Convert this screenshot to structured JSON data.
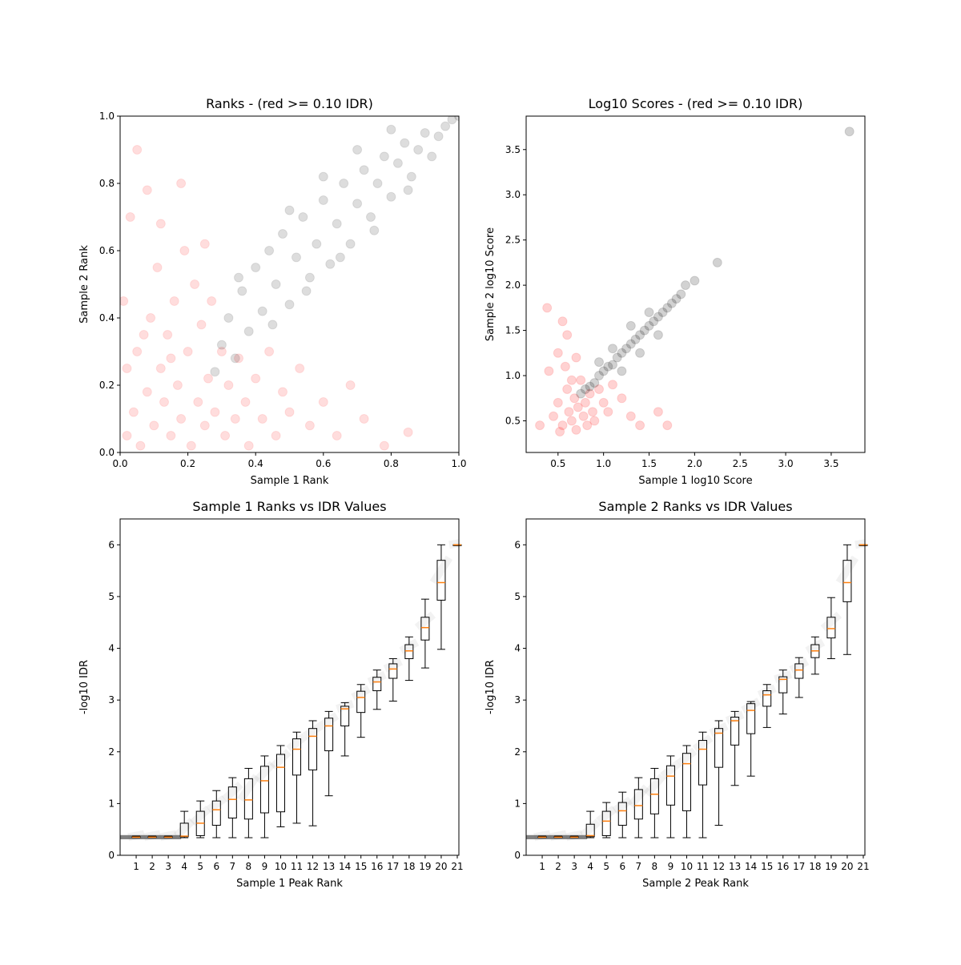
{
  "chart_data": [
    {
      "id": "ranks",
      "type": "scatter",
      "title": "Ranks - (red >= 0.10 IDR)",
      "xlabel": "Sample 1 Rank",
      "ylabel": "Sample 2 Rank",
      "xlim": [
        0,
        1
      ],
      "ylim": [
        0,
        1
      ],
      "xticks": [
        "0.0",
        "0.2",
        "0.4",
        "0.6",
        "0.8",
        "1.0"
      ],
      "yticks": [
        "0.0",
        "0.2",
        "0.4",
        "0.6",
        "0.8",
        "1.0"
      ],
      "series": [
        {
          "color": "#ff0000",
          "alpha": 0.06,
          "points": [
            [
              0.02,
              0.05
            ],
            [
              0.04,
              0.12
            ],
            [
              0.05,
              0.3
            ],
            [
              0.06,
              0.02
            ],
            [
              0.08,
              0.18
            ],
            [
              0.09,
              0.4
            ],
            [
              0.1,
              0.08
            ],
            [
              0.11,
              0.55
            ],
            [
              0.12,
              0.25
            ],
            [
              0.13,
              0.15
            ],
            [
              0.14,
              0.35
            ],
            [
              0.15,
              0.05
            ],
            [
              0.16,
              0.45
            ],
            [
              0.17,
              0.2
            ],
            [
              0.18,
              0.1
            ],
            [
              0.19,
              0.6
            ],
            [
              0.2,
              0.3
            ],
            [
              0.21,
              0.02
            ],
            [
              0.22,
              0.5
            ],
            [
              0.23,
              0.15
            ],
            [
              0.24,
              0.38
            ],
            [
              0.25,
              0.08
            ],
            [
              0.26,
              0.22
            ],
            [
              0.27,
              0.45
            ],
            [
              0.28,
              0.12
            ],
            [
              0.3,
              0.3
            ],
            [
              0.31,
              0.05
            ],
            [
              0.32,
              0.2
            ],
            [
              0.34,
              0.1
            ],
            [
              0.35,
              0.28
            ],
            [
              0.37,
              0.15
            ],
            [
              0.38,
              0.02
            ],
            [
              0.4,
              0.22
            ],
            [
              0.42,
              0.1
            ],
            [
              0.44,
              0.3
            ],
            [
              0.46,
              0.05
            ],
            [
              0.48,
              0.18
            ],
            [
              0.5,
              0.12
            ],
            [
              0.53,
              0.25
            ],
            [
              0.56,
              0.08
            ],
            [
              0.6,
              0.15
            ],
            [
              0.64,
              0.05
            ],
            [
              0.68,
              0.2
            ],
            [
              0.72,
              0.1
            ],
            [
              0.78,
              0.02
            ],
            [
              0.85,
              0.06
            ],
            [
              0.03,
              0.7
            ],
            [
              0.05,
              0.9
            ],
            [
              0.08,
              0.78
            ],
            [
              0.12,
              0.68
            ],
            [
              0.18,
              0.8
            ],
            [
              0.25,
              0.62
            ],
            [
              0.01,
              0.45
            ],
            [
              0.02,
              0.25
            ],
            [
              0.07,
              0.35
            ],
            [
              0.15,
              0.28
            ]
          ]
        },
        {
          "color": "#000000",
          "alpha": 0.06,
          "points": [
            [
              0.28,
              0.24
            ],
            [
              0.3,
              0.32
            ],
            [
              0.32,
              0.4
            ],
            [
              0.34,
              0.28
            ],
            [
              0.36,
              0.48
            ],
            [
              0.38,
              0.36
            ],
            [
              0.4,
              0.55
            ],
            [
              0.42,
              0.42
            ],
            [
              0.44,
              0.6
            ],
            [
              0.46,
              0.5
            ],
            [
              0.48,
              0.65
            ],
            [
              0.5,
              0.44
            ],
            [
              0.52,
              0.58
            ],
            [
              0.54,
              0.7
            ],
            [
              0.56,
              0.52
            ],
            [
              0.58,
              0.62
            ],
            [
              0.6,
              0.75
            ],
            [
              0.62,
              0.56
            ],
            [
              0.64,
              0.68
            ],
            [
              0.66,
              0.8
            ],
            [
              0.68,
              0.62
            ],
            [
              0.7,
              0.74
            ],
            [
              0.72,
              0.84
            ],
            [
              0.74,
              0.7
            ],
            [
              0.76,
              0.8
            ],
            [
              0.78,
              0.88
            ],
            [
              0.8,
              0.76
            ],
            [
              0.82,
              0.86
            ],
            [
              0.84,
              0.92
            ],
            [
              0.86,
              0.82
            ],
            [
              0.88,
              0.9
            ],
            [
              0.9,
              0.95
            ],
            [
              0.92,
              0.88
            ],
            [
              0.94,
              0.94
            ],
            [
              0.96,
              0.97
            ],
            [
              0.98,
              0.99
            ],
            [
              1.0,
              1.0
            ],
            [
              0.45,
              0.38
            ],
            [
              0.55,
              0.48
            ],
            [
              0.65,
              0.58
            ],
            [
              0.75,
              0.66
            ],
            [
              0.85,
              0.78
            ],
            [
              0.35,
              0.52
            ],
            [
              0.5,
              0.72
            ],
            [
              0.6,
              0.82
            ],
            [
              0.7,
              0.9
            ],
            [
              0.8,
              0.96
            ]
          ]
        }
      ]
    },
    {
      "id": "scores",
      "type": "scatter",
      "title": "Log10 Scores - (red >= 0.10 IDR)",
      "xlabel": "Sample 1 log10 Score",
      "ylabel": "Sample 2 log10 Score",
      "xlim": [
        0.15,
        3.87
      ],
      "ylim": [
        0.15,
        3.87
      ],
      "xticks": [
        "0.5",
        "1.0",
        "1.5",
        "2.0",
        "2.5",
        "3.0",
        "3.5"
      ],
      "yticks": [
        "0.5",
        "1.0",
        "1.5",
        "2.0",
        "2.5",
        "3.0",
        "3.5"
      ],
      "series": [
        {
          "color": "#ff0000",
          "alpha": 0.08,
          "points": [
            [
              0.45,
              0.55
            ],
            [
              0.5,
              0.7
            ],
            [
              0.55,
              0.45
            ],
            [
              0.6,
              0.85
            ],
            [
              0.62,
              0.6
            ],
            [
              0.65,
              0.5
            ],
            [
              0.68,
              0.75
            ],
            [
              0.7,
              0.4
            ],
            [
              0.72,
              0.65
            ],
            [
              0.75,
              0.95
            ],
            [
              0.78,
              0.55
            ],
            [
              0.8,
              0.7
            ],
            [
              0.82,
              0.45
            ],
            [
              0.85,
              0.8
            ],
            [
              0.88,
              0.6
            ],
            [
              0.9,
              0.5
            ],
            [
              0.95,
              0.85
            ],
            [
              1.0,
              0.7
            ],
            [
              1.05,
              0.6
            ],
            [
              1.1,
              0.9
            ],
            [
              1.2,
              0.75
            ],
            [
              1.3,
              0.55
            ],
            [
              1.4,
              0.45
            ],
            [
              1.6,
              0.6
            ],
            [
              1.7,
              0.45
            ],
            [
              0.4,
              1.05
            ],
            [
              0.5,
              1.25
            ],
            [
              0.6,
              1.45
            ],
            [
              0.7,
              1.2
            ],
            [
              0.55,
              1.6
            ],
            [
              0.38,
              1.75
            ],
            [
              0.3,
              0.45
            ],
            [
              0.52,
              0.38
            ],
            [
              0.65,
              0.95
            ],
            [
              0.58,
              1.1
            ]
          ]
        },
        {
          "color": "#000000",
          "alpha": 0.08,
          "points": [
            [
              0.75,
              0.8
            ],
            [
              0.8,
              0.85
            ],
            [
              0.85,
              0.88
            ],
            [
              0.9,
              0.92
            ],
            [
              0.95,
              1.0
            ],
            [
              1.0,
              1.05
            ],
            [
              1.05,
              1.1
            ],
            [
              1.1,
              1.12
            ],
            [
              1.15,
              1.2
            ],
            [
              1.2,
              1.25
            ],
            [
              1.25,
              1.3
            ],
            [
              1.3,
              1.35
            ],
            [
              1.35,
              1.4
            ],
            [
              1.4,
              1.45
            ],
            [
              1.45,
              1.5
            ],
            [
              1.5,
              1.55
            ],
            [
              1.55,
              1.6
            ],
            [
              1.6,
              1.65
            ],
            [
              1.65,
              1.7
            ],
            [
              1.7,
              1.75
            ],
            [
              1.75,
              1.8
            ],
            [
              1.8,
              1.85
            ],
            [
              1.85,
              1.9
            ],
            [
              1.9,
              2.0
            ],
            [
              2.0,
              2.05
            ],
            [
              2.25,
              2.25
            ],
            [
              3.7,
              3.7
            ],
            [
              1.1,
              1.3
            ],
            [
              1.2,
              1.05
            ],
            [
              1.4,
              1.25
            ],
            [
              1.5,
              1.7
            ],
            [
              1.3,
              1.55
            ],
            [
              1.6,
              1.45
            ],
            [
              0.95,
              1.15
            ]
          ]
        }
      ]
    },
    {
      "id": "s1idr",
      "type": "box",
      "title": "Sample 1 Ranks vs IDR Values",
      "xlabel": "Sample 1 Peak Rank",
      "ylabel": "-log10 IDR",
      "xlim": [
        0,
        21
      ],
      "ylim": [
        0,
        6.5
      ],
      "yticks": [
        "0",
        "1",
        "2",
        "3",
        "4",
        "5",
        "6"
      ],
      "categories": [
        "1",
        "2",
        "3",
        "4",
        "5",
        "6",
        "7",
        "8",
        "9",
        "10",
        "11",
        "12",
        "13",
        "14",
        "15",
        "16",
        "17",
        "18",
        "19",
        "20",
        "21"
      ],
      "boxes": [
        [
          0.35,
          0.35,
          0.35,
          0.36,
          0.37
        ],
        [
          0.35,
          0.35,
          0.35,
          0.36,
          0.37
        ],
        [
          0.35,
          0.35,
          0.35,
          0.36,
          0.37
        ],
        [
          0.34,
          0.36,
          0.37,
          0.62,
          0.85
        ],
        [
          0.34,
          0.38,
          0.62,
          0.85,
          1.05
        ],
        [
          0.34,
          0.58,
          0.88,
          1.05,
          1.25
        ],
        [
          0.34,
          0.72,
          1.08,
          1.32,
          1.5
        ],
        [
          0.34,
          0.7,
          1.07,
          1.48,
          1.68
        ],
        [
          0.34,
          0.82,
          1.44,
          1.72,
          1.92
        ],
        [
          0.55,
          0.84,
          1.7,
          1.95,
          2.12
        ],
        [
          0.62,
          1.55,
          2.05,
          2.25,
          2.38
        ],
        [
          0.57,
          1.65,
          2.3,
          2.45,
          2.6
        ],
        [
          1.15,
          2.02,
          2.5,
          2.65,
          2.78
        ],
        [
          1.92,
          2.5,
          2.83,
          2.88,
          2.95
        ],
        [
          2.28,
          2.76,
          3.05,
          3.17,
          3.3
        ],
        [
          2.82,
          3.18,
          3.35,
          3.44,
          3.58
        ],
        [
          2.98,
          3.42,
          3.6,
          3.7,
          3.8
        ],
        [
          3.38,
          3.8,
          3.95,
          4.07,
          4.22
        ],
        [
          3.62,
          4.16,
          4.4,
          4.6,
          4.95
        ],
        [
          3.98,
          4.93,
          5.27,
          5.7,
          6.0
        ],
        [
          6.0,
          6.0,
          6.0,
          6.0,
          6.0
        ]
      ]
    },
    {
      "id": "s2idr",
      "type": "box",
      "title": "Sample 2 Ranks vs IDR Values",
      "xlabel": "Sample 2 Peak Rank",
      "ylabel": "-log10 IDR",
      "xlim": [
        0,
        21
      ],
      "ylim": [
        0,
        6.5
      ],
      "yticks": [
        "0",
        "1",
        "2",
        "3",
        "4",
        "5",
        "6"
      ],
      "categories": [
        "1",
        "2",
        "3",
        "4",
        "5",
        "6",
        "7",
        "8",
        "9",
        "10",
        "11",
        "12",
        "13",
        "14",
        "15",
        "16",
        "17",
        "18",
        "19",
        "20",
        "21"
      ],
      "boxes": [
        [
          0.35,
          0.35,
          0.35,
          0.36,
          0.37
        ],
        [
          0.35,
          0.35,
          0.35,
          0.36,
          0.37
        ],
        [
          0.35,
          0.35,
          0.35,
          0.36,
          0.37
        ],
        [
          0.34,
          0.36,
          0.38,
          0.6,
          0.85
        ],
        [
          0.34,
          0.38,
          0.66,
          0.85,
          1.02
        ],
        [
          0.34,
          0.58,
          0.86,
          1.02,
          1.22
        ],
        [
          0.34,
          0.7,
          0.96,
          1.27,
          1.5
        ],
        [
          0.34,
          0.8,
          1.18,
          1.48,
          1.68
        ],
        [
          0.34,
          0.97,
          1.53,
          1.73,
          1.92
        ],
        [
          0.34,
          0.86,
          1.77,
          1.97,
          2.12
        ],
        [
          0.34,
          1.36,
          2.05,
          2.22,
          2.38
        ],
        [
          0.58,
          1.7,
          2.36,
          2.45,
          2.6
        ],
        [
          1.35,
          2.13,
          2.6,
          2.67,
          2.78
        ],
        [
          1.53,
          2.35,
          2.8,
          2.93,
          2.97
        ],
        [
          2.47,
          2.88,
          3.1,
          3.18,
          3.3
        ],
        [
          2.73,
          3.14,
          3.4,
          3.45,
          3.58
        ],
        [
          3.05,
          3.42,
          3.58,
          3.7,
          3.82
        ],
        [
          3.5,
          3.82,
          3.95,
          4.07,
          4.22
        ],
        [
          3.8,
          4.2,
          4.38,
          4.6,
          4.98
        ],
        [
          3.88,
          4.9,
          5.27,
          5.7,
          6.0
        ],
        [
          6.0,
          6.0,
          6.0,
          6.0,
          6.0
        ]
      ]
    }
  ]
}
